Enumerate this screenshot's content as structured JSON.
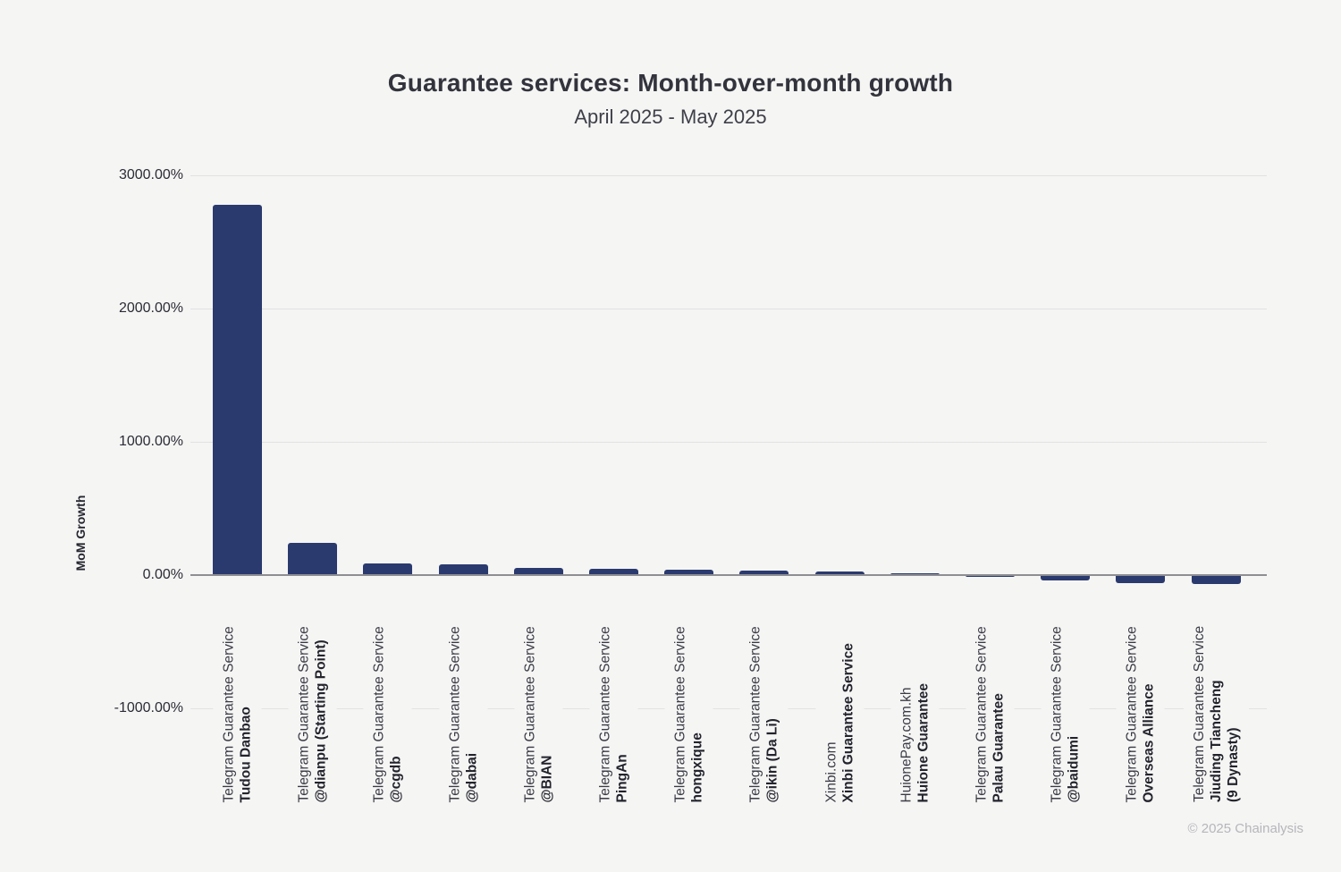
{
  "header": {
    "title": "Guarantee services: Month-over-month growth",
    "subtitle": "April 2025 - May 2025"
  },
  "footer": {
    "text": "© 2025 Chainalysis"
  },
  "colors": {
    "background": "#f5f5f4",
    "bar": "#2b3a6e",
    "gridline": "#e2e2e4",
    "zero_axis": "#8e8e93"
  },
  "chart_data": {
    "type": "bar",
    "title": "Guarantee services: Month-over-month growth",
    "subtitle": "April 2025 - May 2025",
    "xlabel": "",
    "ylabel": "MoM Growth",
    "value_unit": "percent",
    "grid": true,
    "legend": false,
    "ylim": [
      -1000,
      3000
    ],
    "y_ticks": [
      {
        "label": "3000.00%",
        "value": 3000
      },
      {
        "label": "2000.00%",
        "value": 2000
      },
      {
        "label": "1000.00%",
        "value": 1000
      },
      {
        "label": "0.00%",
        "value": 0
      },
      {
        "label": "-1000.00%",
        "value": -1000
      }
    ],
    "categories": [
      {
        "org": "Telegram Guarantee Service",
        "name_lines": [
          "Tudou Danbao"
        ]
      },
      {
        "org": "Telegram Guarantee Service",
        "name_lines": [
          "@dianpu (Starting Point)"
        ]
      },
      {
        "org": "Telegram Guarantee Service",
        "name_lines": [
          "@cgdb"
        ]
      },
      {
        "org": "Telegram Guarantee Service",
        "name_lines": [
          "@dabai"
        ]
      },
      {
        "org": "Telegram Guarantee Service",
        "name_lines": [
          "@BIAN"
        ]
      },
      {
        "org": "Telegram Guarantee Service",
        "name_lines": [
          "PingAn"
        ]
      },
      {
        "org": "Telegram Guarantee Service",
        "name_lines": [
          "hongxique"
        ]
      },
      {
        "org": "Telegram Guarantee Service",
        "name_lines": [
          "@ikin (Da Li)"
        ]
      },
      {
        "org": "Xinbi.com",
        "name_lines": [
          "Xinbi Guarantee Service"
        ]
      },
      {
        "org": "HuionePay.com.kh",
        "name_lines": [
          "Huione Guarantee"
        ]
      },
      {
        "org": "Telegram Guarantee Service",
        "name_lines": [
          "Palau Guarantee"
        ]
      },
      {
        "org": "Telegram Guarantee Service",
        "name_lines": [
          "@baidumi"
        ]
      },
      {
        "org": "Telegram Guarantee Service",
        "name_lines": [
          "Overseas Alliance"
        ]
      },
      {
        "org": "Telegram Guarantee Service",
        "name_lines": [
          "Jiuding Tiancheng",
          "(9 Dynasty)"
        ]
      }
    ],
    "values": [
      2780,
      240,
      88,
      80,
      56,
      48,
      38,
      32,
      30,
      13,
      -15,
      -38,
      -62,
      -70
    ]
  }
}
